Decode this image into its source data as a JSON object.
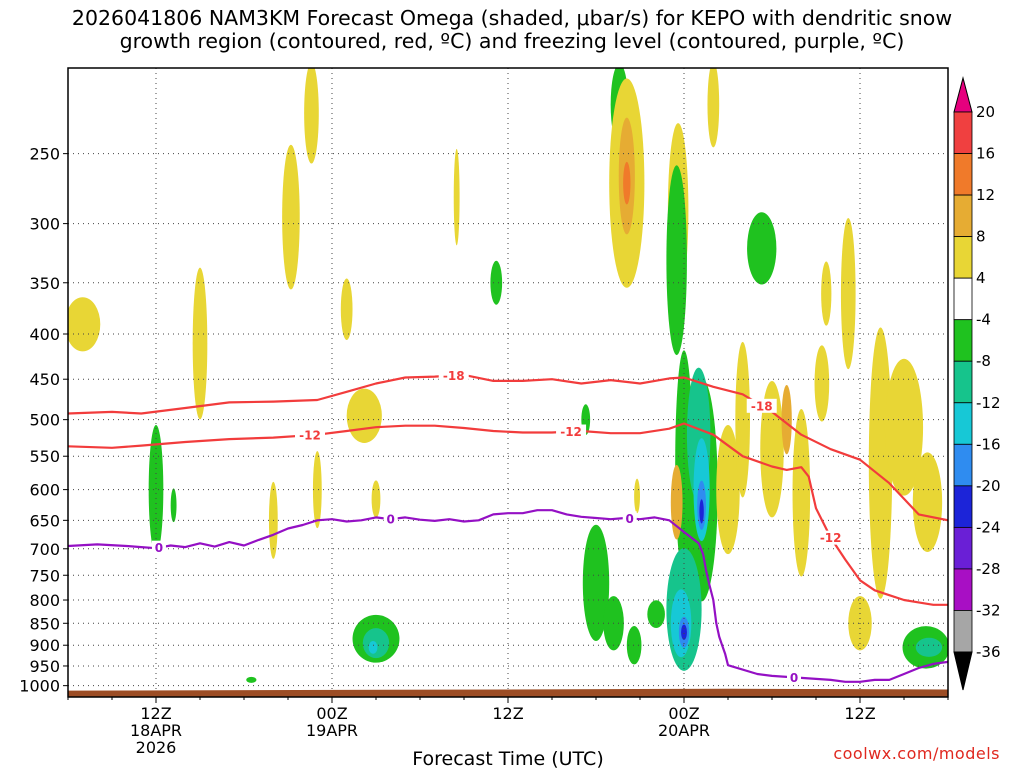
{
  "title": {
    "line1": "2026041806 NAM3KM Forecast Omega (shaded, μbar/s) for KEPO with dendritic snow",
    "line2": "growth region (contoured, red, ºC) and freezing level (contoured, purple, ºC)"
  },
  "credit": "coolwx.com/models",
  "chart_data": {
    "type": "heatmap",
    "xlabel": "Forecast Time (UTC)",
    "ylabel": "",
    "x_unit": "forecast hour from 2026041806",
    "xlim": [
      0,
      60
    ],
    "ylim": [
      1030,
      200
    ],
    "y_scale": "log-pressure",
    "y_ticks": [
      250,
      300,
      350,
      400,
      450,
      500,
      550,
      600,
      650,
      700,
      750,
      800,
      850,
      900,
      950,
      1000
    ],
    "x_ticks": [
      {
        "hour": 6,
        "lines": [
          "12Z",
          "18APR",
          "2026"
        ]
      },
      {
        "hour": 18,
        "lines": [
          "00Z",
          "19APR"
        ]
      },
      {
        "hour": 30,
        "lines": [
          "12Z"
        ]
      },
      {
        "hour": 42,
        "lines": [
          "00Z",
          "20APR"
        ]
      },
      {
        "hour": 54,
        "lines": [
          "12Z"
        ]
      }
    ],
    "grid": true,
    "colorbar": {
      "labels": [
        "20",
        "16",
        "12",
        "8",
        "4",
        "-4",
        "-8",
        "-12",
        "-16",
        "-20",
        "-24",
        "-28",
        "-32",
        "-36"
      ],
      "bins": [
        {
          "lo": 20,
          "hi": 24,
          "color": "#e6007e"
        },
        {
          "lo": 16,
          "hi": 20,
          "color": "#f04040"
        },
        {
          "lo": 12,
          "hi": 16,
          "color": "#f07a2a"
        },
        {
          "lo": 8,
          "hi": 12,
          "color": "#e6ac33"
        },
        {
          "lo": 4,
          "hi": 8,
          "color": "#e8d635"
        },
        {
          "lo": -4,
          "hi": 4,
          "color": "#ffffff"
        },
        {
          "lo": -8,
          "hi": -4,
          "color": "#1fc21f"
        },
        {
          "lo": -12,
          "hi": -8,
          "color": "#16c48c"
        },
        {
          "lo": -16,
          "hi": -12,
          "color": "#17c8d6"
        },
        {
          "lo": -20,
          "hi": -16,
          "color": "#2f8cf0"
        },
        {
          "lo": -24,
          "hi": -20,
          "color": "#1c24d8"
        },
        {
          "lo": -28,
          "hi": -24,
          "color": "#6a1fd6"
        },
        {
          "lo": -32,
          "hi": -28,
          "color": "#a80fc4"
        },
        {
          "lo": -36,
          "hi": -32,
          "color": "#a6a6a6"
        },
        {
          "lo": -40,
          "hi": -36,
          "color": "#000000"
        }
      ]
    },
    "omega_blobs": [
      {
        "x": 1.0,
        "p": 390,
        "w": 1.2,
        "h": 55,
        "level": 4
      },
      {
        "x": 6.0,
        "p": 600,
        "w": 0.5,
        "h": 200,
        "level": -4
      },
      {
        "x": 7.2,
        "p": 625,
        "w": 0.2,
        "h": 55,
        "level": -4
      },
      {
        "x": 9.0,
        "p": 410,
        "w": 0.5,
        "h": 160,
        "level": 4
      },
      {
        "x": 14.0,
        "p": 650,
        "w": 0.3,
        "h": 130,
        "level": 4
      },
      {
        "x": 15.2,
        "p": 295,
        "w": 0.6,
        "h": 110,
        "level": 4
      },
      {
        "x": 16.6,
        "p": 225,
        "w": 0.5,
        "h": 70,
        "level": 4
      },
      {
        "x": 17.0,
        "p": 600,
        "w": 0.3,
        "h": 120,
        "level": 4
      },
      {
        "x": 19.0,
        "p": 375,
        "w": 0.4,
        "h": 60,
        "level": 4
      },
      {
        "x": 20.2,
        "p": 495,
        "w": 1.2,
        "h": 70,
        "level": 4
      },
      {
        "x": 21.0,
        "p": 885,
        "w": 1.6,
        "h": 110,
        "level": -4
      },
      {
        "x": 21.0,
        "p": 895,
        "w": 0.9,
        "h": 70,
        "level": -8
      },
      {
        "x": 20.8,
        "p": 905,
        "w": 0.3,
        "h": 30,
        "level": -12
      },
      {
        "x": 21.0,
        "p": 615,
        "w": 0.3,
        "h": 60,
        "level": 4
      },
      {
        "x": 26.5,
        "p": 280,
        "w": 0.2,
        "h": 70,
        "level": 4
      },
      {
        "x": 29.2,
        "p": 350,
        "w": 0.4,
        "h": 40,
        "level": -4
      },
      {
        "x": 35.3,
        "p": 500,
        "w": 0.3,
        "h": 40,
        "level": -4
      },
      {
        "x": 36.0,
        "p": 765,
        "w": 0.9,
        "h": 230,
        "level": -4
      },
      {
        "x": 37.2,
        "p": 850,
        "w": 0.7,
        "h": 120,
        "level": -4
      },
      {
        "x": 37.6,
        "p": 220,
        "w": 0.6,
        "h": 55,
        "level": -4
      },
      {
        "x": 38.1,
        "p": 270,
        "w": 1.2,
        "h": 150,
        "level": 4
      },
      {
        "x": 38.1,
        "p": 265,
        "w": 0.55,
        "h": 80,
        "level": 8
      },
      {
        "x": 38.1,
        "p": 270,
        "w": 0.25,
        "h": 30,
        "level": 12
      },
      {
        "x": 38.6,
        "p": 900,
        "w": 0.5,
        "h": 90,
        "level": -4
      },
      {
        "x": 38.8,
        "p": 610,
        "w": 0.2,
        "h": 55,
        "level": 4
      },
      {
        "x": 40.1,
        "p": 830,
        "w": 0.6,
        "h": 60,
        "level": -4
      },
      {
        "x": 41.6,
        "p": 290,
        "w": 0.7,
        "h": 130,
        "level": 4
      },
      {
        "x": 41.5,
        "p": 330,
        "w": 0.7,
        "h": 160,
        "level": -4
      },
      {
        "x": 42.0,
        "p": 560,
        "w": 0.6,
        "h": 320,
        "level": -4
      },
      {
        "x": 42.0,
        "p": 820,
        "w": 1.2,
        "h": 260,
        "level": -8
      },
      {
        "x": 41.8,
        "p": 850,
        "w": 0.7,
        "h": 150,
        "level": -12
      },
      {
        "x": 42.0,
        "p": 870,
        "w": 0.35,
        "h": 70,
        "level": -16
      },
      {
        "x": 42.0,
        "p": 870,
        "w": 0.2,
        "h": 35,
        "level": -20
      },
      {
        "x": 41.5,
        "p": 620,
        "w": 0.4,
        "h": 120,
        "level": 8
      },
      {
        "x": 43.2,
        "p": 600,
        "w": 1.1,
        "h": 340,
        "level": -4
      },
      {
        "x": 43.0,
        "p": 520,
        "w": 0.8,
        "h": 180,
        "level": -8
      },
      {
        "x": 43.2,
        "p": 600,
        "w": 0.55,
        "h": 160,
        "level": -12
      },
      {
        "x": 43.2,
        "p": 625,
        "w": 0.3,
        "h": 80,
        "level": -16
      },
      {
        "x": 43.2,
        "p": 635,
        "w": 0.15,
        "h": 40,
        "level": -20
      },
      {
        "x": 44.0,
        "p": 220,
        "w": 0.4,
        "h": 60,
        "level": 4
      },
      {
        "x": 45.0,
        "p": 600,
        "w": 0.8,
        "h": 200,
        "level": 4
      },
      {
        "x": 46.0,
        "p": 500,
        "w": 0.5,
        "h": 200,
        "level": 4
      },
      {
        "x": 47.3,
        "p": 320,
        "w": 1.0,
        "h": 60,
        "level": -4
      },
      {
        "x": 48.0,
        "p": 540,
        "w": 0.8,
        "h": 190,
        "level": 4
      },
      {
        "x": 49.0,
        "p": 500,
        "w": 0.35,
        "h": 90,
        "level": 8
      },
      {
        "x": 50.0,
        "p": 605,
        "w": 0.6,
        "h": 260,
        "level": 4
      },
      {
        "x": 51.4,
        "p": 455,
        "w": 0.5,
        "h": 90,
        "level": 4
      },
      {
        "x": 51.7,
        "p": 360,
        "w": 0.35,
        "h": 60,
        "level": 4
      },
      {
        "x": 53.2,
        "p": 360,
        "w": 0.5,
        "h": 140,
        "level": 4
      },
      {
        "x": 55.4,
        "p": 560,
        "w": 0.8,
        "h": 380,
        "level": 4
      },
      {
        "x": 57.0,
        "p": 510,
        "w": 1.3,
        "h": 180,
        "level": 4
      },
      {
        "x": 58.6,
        "p": 620,
        "w": 1.0,
        "h": 160,
        "level": 4
      },
      {
        "x": 54.0,
        "p": 850,
        "w": 0.8,
        "h": 120,
        "level": 4
      },
      {
        "x": 58.5,
        "p": 905,
        "w": 1.6,
        "h": 100,
        "level": -4
      },
      {
        "x": 58.7,
        "p": 905,
        "w": 0.9,
        "h": 45,
        "level": -8
      },
      {
        "x": 12.5,
        "p": 985,
        "w": 0.35,
        "h": 8,
        "level": -4
      }
    ],
    "contours": [
      {
        "name": "-18C isotherm",
        "color": "#f23c3c",
        "label": "-18",
        "x": [
          0,
          3,
          5,
          8,
          11,
          14,
          17,
          19,
          21,
          23,
          25,
          27,
          29,
          31,
          33,
          35,
          37,
          39,
          41,
          42,
          44,
          46,
          48,
          50,
          52,
          54,
          56,
          58,
          60
        ],
        "p": [
          492,
          490,
          492,
          485,
          478,
          477,
          475,
          465,
          455,
          448,
          447,
          445,
          452,
          452,
          450,
          455,
          451,
          455,
          449,
          448,
          459,
          468,
          490,
          520,
          540,
          555,
          590,
          640,
          650
        ]
      },
      {
        "name": "-12C isotherm",
        "color": "#f23c3c",
        "label": "-12",
        "x": [
          0,
          3,
          5,
          8,
          11,
          14,
          17,
          19,
          21,
          23,
          25,
          27,
          29,
          31,
          33,
          35,
          37,
          39,
          41,
          42,
          44,
          46,
          48,
          49,
          50,
          50.5,
          51,
          52,
          53,
          54,
          55,
          56,
          57,
          58,
          59,
          60
        ],
        "p": [
          536,
          538,
          535,
          530,
          526,
          524,
          520,
          515,
          510,
          508,
          508,
          511,
          515,
          517,
          517,
          515,
          518,
          518,
          512,
          505,
          520,
          550,
          565,
          570,
          566,
          580,
          630,
          680,
          720,
          760,
          780,
          790,
          800,
          805,
          810,
          810
        ]
      },
      {
        "name": "0C isotherm (freezing level)",
        "color": "#9410c4",
        "label": "0",
        "x": [
          0,
          2,
          4,
          5,
          6,
          7,
          8,
          9,
          10,
          11,
          12,
          13,
          14,
          15,
          16,
          17,
          18,
          19,
          20,
          21,
          22,
          23,
          24,
          25,
          26,
          27,
          28,
          29,
          30,
          31,
          32,
          33,
          34,
          35,
          36,
          37,
          38,
          39,
          40,
          41,
          41.5,
          42,
          42.3,
          42.6,
          43,
          43.3,
          43.5,
          43.7,
          44,
          44.2,
          44.4,
          44.6,
          44.8,
          45,
          47,
          48,
          50,
          52,
          53,
          54,
          55,
          56,
          57,
          58,
          59,
          60
        ],
        "p": [
          695,
          692,
          695,
          697,
          699,
          694,
          697,
          690,
          696,
          688,
          694,
          684,
          675,
          664,
          658,
          650,
          648,
          652,
          650,
          645,
          648,
          645,
          649,
          651,
          648,
          652,
          650,
          640,
          638,
          638,
          633,
          633,
          640,
          644,
          646,
          648,
          646,
          648,
          645,
          650,
          660,
          670,
          676,
          682,
          690,
          710,
          740,
          765,
          800,
          850,
          880,
          900,
          920,
          948,
          970,
          975,
          980,
          985,
          990,
          990,
          985,
          985,
          970,
          955,
          945,
          940
        ]
      }
    ],
    "ground": {
      "color": "#9c4d25",
      "top_p_start": 1013,
      "top_p_end": 1008
    }
  }
}
